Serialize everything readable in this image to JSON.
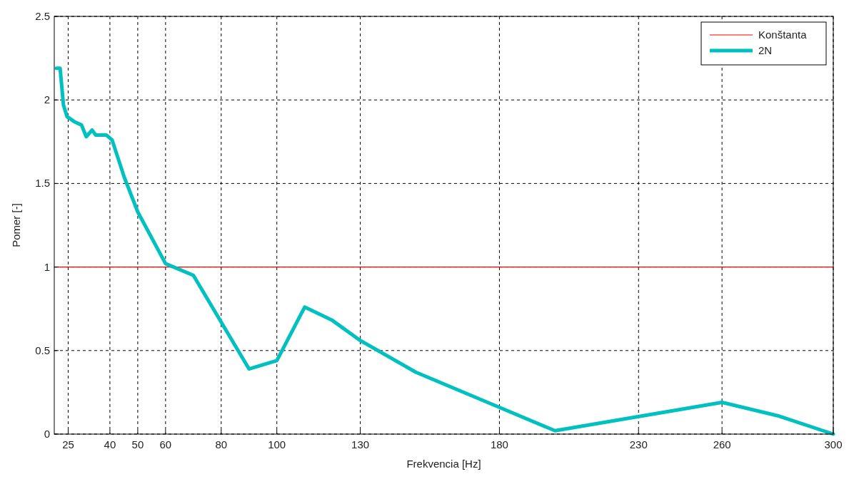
{
  "chart_data": {
    "type": "line",
    "xlabel": "Frekvencia  [Hz]",
    "ylabel": "Pomer [-]",
    "xlim": [
      20,
      300
    ],
    "xticks": [
      25,
      40,
      50,
      60,
      80,
      100,
      130,
      180,
      230,
      260,
      300
    ],
    "ylim": [
      0,
      2.5
    ],
    "yticks": [
      0,
      0.5,
      1,
      1.5,
      2,
      2.5
    ],
    "grid": true,
    "legend": "top right",
    "series": [
      {
        "name": "Konštanta",
        "color": "#ff0000",
        "x": [
          20,
          300
        ],
        "values": [
          1,
          1
        ]
      },
      {
        "name": "2N",
        "color": "#00c0c0",
        "x": [
          20.8,
          22.1,
          23.3,
          24.6,
          27.2,
          29.8,
          31.5,
          33.6,
          34.9,
          38.7,
          40.8,
          45.1,
          50,
          60,
          70,
          90,
          100,
          110,
          120,
          130,
          150,
          180,
          200,
          260,
          280,
          300
        ],
        "values": [
          2.19,
          2.19,
          1.97,
          1.9,
          1.87,
          1.85,
          1.78,
          1.82,
          1.79,
          1.79,
          1.76,
          1.54,
          1.33,
          1.02,
          0.95,
          0.39,
          0.44,
          0.76,
          0.68,
          0.56,
          0.37,
          0.16,
          0.02,
          0.19,
          0.11,
          0
        ]
      }
    ]
  }
}
